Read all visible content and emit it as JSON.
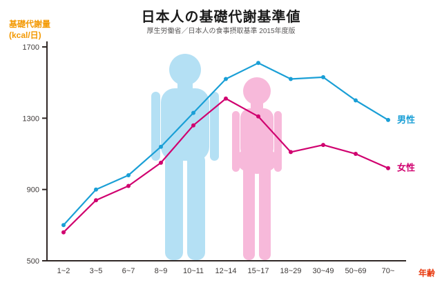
{
  "header": {
    "title": "日本人の基礎代謝基準値",
    "subtitle": "厚生労働省／日本人の食事摂取基準 2015年度版"
  },
  "chart_data": {
    "type": "line",
    "title": "日本人の基礎代謝基準値",
    "subtitle": "厚生労働省／日本人の食事摂取基準 2015年度版",
    "xlabel": "年齢",
    "ylabel_line1": "基礎代謝量",
    "ylabel_line2": "(kcal/日)",
    "categories": [
      "1~2",
      "3~5",
      "6~7",
      "8~9",
      "10~11",
      "12~14",
      "15~17",
      "18~29",
      "30~49",
      "50~69",
      "70~"
    ],
    "series": [
      {
        "key": "male",
        "name": "男性",
        "color": "#1a9fd6",
        "values": [
          700,
          900,
          980,
          1140,
          1330,
          1520,
          1610,
          1520,
          1530,
          1400,
          1290
        ]
      },
      {
        "key": "female",
        "name": "女性",
        "color": "#d0006f",
        "values": [
          660,
          840,
          920,
          1050,
          1260,
          1410,
          1310,
          1110,
          1150,
          1100,
          1020
        ]
      }
    ],
    "yticks": [
      500,
      900,
      1300,
      1700
    ],
    "ylim": [
      500,
      1700
    ],
    "grid": false,
    "legend_position": "right-of-line-ends"
  },
  "colors": {
    "male_line": "#1a9fd6",
    "female_line": "#d0006f",
    "male_silhouette": "#b4e0f4",
    "female_silhouette": "#f7b9da",
    "ylabel_text": "#f39800",
    "xlabel_text": "#e8380d",
    "axis": "#2f2725",
    "tick_text": "#3e3a39"
  }
}
